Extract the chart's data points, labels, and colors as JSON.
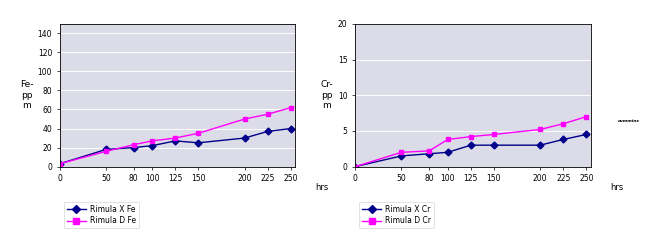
{
  "hrs": [
    0,
    50,
    80,
    100,
    125,
    150,
    200,
    225,
    250
  ],
  "fe_rimula_x": [
    3,
    18,
    20,
    22,
    27,
    25,
    30,
    37,
    40
  ],
  "fe_rimula_d": [
    3,
    16,
    23,
    27,
    30,
    35,
    50,
    55,
    62
  ],
  "cr_rimula_x": [
    0,
    1.5,
    1.8,
    2.0,
    3.0,
    3.0,
    3.0,
    3.8,
    4.5
  ],
  "cr_rimula_d": [
    0,
    2.0,
    2.2,
    3.8,
    4.2,
    4.5,
    5.2,
    6.0,
    7.0
  ],
  "fe_ylabel": "Fe-\npp\nm",
  "cr_ylabel": "Cr-\npp\nm",
  "xlabel": "hrs",
  "fe_ylim": [
    0,
    150
  ],
  "cr_ylim": [
    0,
    20
  ],
  "fe_yticks": [
    0,
    20,
    40,
    60,
    80,
    100,
    120,
    140
  ],
  "cr_yticks": [
    0,
    5,
    10,
    15,
    20
  ],
  "xticks": [
    0,
    50,
    80,
    100,
    125,
    150,
    200,
    225,
    250
  ],
  "legend_rimula_x_fe": "Rimula X Fe",
  "legend_rimula_d_fe": "Rimula D Fe",
  "legend_rimula_x_cr": "Rimula X Cr",
  "legend_rimula_d_cr": "Rimula D Cr",
  "color_x": "#00008B",
  "color_d": "#FF00FF",
  "bg_color": "#FFFFFF",
  "plot_bg": "#DCDCE8",
  "grid_color": "#FFFFFF",
  "marker_x": "D",
  "marker_d": "s"
}
